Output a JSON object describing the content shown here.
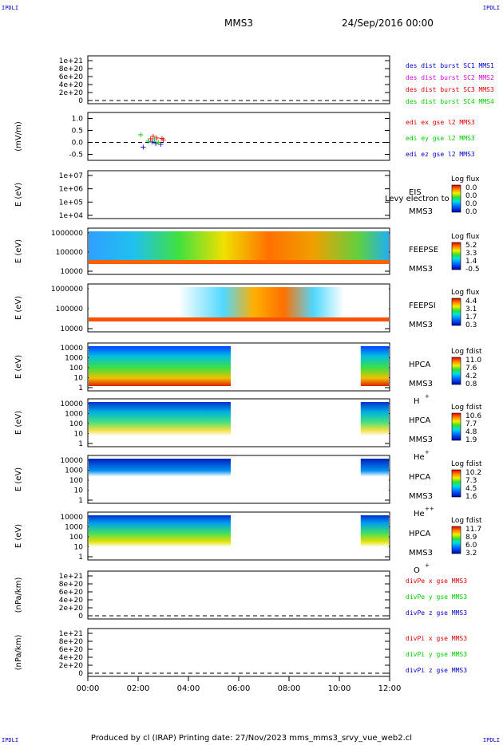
{
  "corners": {
    "tl": "IPDLI",
    "tr": "IPDLI",
    "bl": "IPDLI",
    "br": "IPDLI"
  },
  "header": {
    "title": "MMS3",
    "datetime": "24/Sep/2016 00:00"
  },
  "footer": "Produced by cl (IRAP)   Printing date: 27/Nov/2023   mms_mms3_srvy_vue_web2.cl",
  "colors": {
    "red": "#dd0000",
    "magenta": "#dd00dd",
    "green": "#00cc00",
    "blue": "#0000cc",
    "black": "#000000"
  },
  "chart_data": {
    "type": "stacked-panels",
    "x_axis": {
      "ticks": [
        "00:00",
        "02:00",
        "04:00",
        "06:00",
        "08:00",
        "10:00",
        "12:00"
      ],
      "range": [
        "00:00",
        "12:00"
      ]
    },
    "panels": [
      {
        "kind": "line",
        "ylabel": "",
        "yticks": [
          "1e+21",
          "8e+20",
          "6e+20",
          "4e+20",
          "2e+20",
          "0"
        ],
        "legend": [
          {
            "text": "des dist burst SC1 MMS1",
            "color": "#0000cc"
          },
          {
            "text": "des dist burst SC2 MMS2",
            "color": "#dd00dd"
          },
          {
            "text": "des dist burst SC3 MMS3",
            "color": "#dd0000"
          },
          {
            "text": "des dist burst SC4 MMS4",
            "color": "#00cc00"
          }
        ]
      },
      {
        "kind": "scatter",
        "ylabel": "(mV/m)",
        "yticks": [
          "1.0",
          "0.5",
          "0.0",
          "-0.5"
        ],
        "legend": [
          {
            "text": "edi ex gse l2 MMS3",
            "color": "#dd0000"
          },
          {
            "text": "edi ey gse l2 MMS3",
            "color": "#00cc00"
          },
          {
            "text": "edi ez gse l2 MMS3",
            "color": "#0000cc"
          }
        ],
        "points": [
          {
            "t": 2.1,
            "v": 0.32,
            "c": "green"
          },
          {
            "t": 2.2,
            "v": -0.2,
            "c": "blue"
          },
          {
            "t": 2.4,
            "v": 0.05,
            "c": "green"
          },
          {
            "t": 2.5,
            "v": 0.15,
            "c": "red"
          },
          {
            "t": 2.55,
            "v": 0.02,
            "c": "blue"
          },
          {
            "t": 2.6,
            "v": 0.25,
            "c": "red"
          },
          {
            "t": 2.65,
            "v": 0.1,
            "c": "green"
          },
          {
            "t": 2.7,
            "v": -0.05,
            "c": "blue"
          },
          {
            "t": 2.75,
            "v": 0.18,
            "c": "red"
          },
          {
            "t": 2.8,
            "v": 0.0,
            "c": "green"
          },
          {
            "t": 2.95,
            "v": 0.17,
            "c": "red"
          },
          {
            "t": 3.0,
            "v": 0.1,
            "c": "red"
          },
          {
            "t": 2.9,
            "v": -0.08,
            "c": "blue"
          }
        ]
      },
      {
        "kind": "spectrogram",
        "ylabel": "E (eV)",
        "yticks": [
          "1e+07",
          "1e+06",
          "1e+05",
          "1e+04"
        ],
        "inst": [
          "EIS",
          "MMS3"
        ],
        "overlay": "Levy electron to",
        "cbar_title": "Log flux",
        "cbar": [
          "0.0",
          "0.0",
          "0.0",
          "0.0"
        ]
      },
      {
        "kind": "spectrogram",
        "ylabel": "E (eV)",
        "yticks": [
          "1000000",
          "100000",
          "10000"
        ],
        "inst": [
          "FEEPSE",
          "MMS3"
        ],
        "cbar_title": "Log flux",
        "cbar": [
          "5.2",
          "3.3",
          "1.4",
          "-0.5"
        ]
      },
      {
        "kind": "spectrogram",
        "ylabel": "E (eV)",
        "yticks": [
          "1000000",
          "100000",
          "10000"
        ],
        "inst": [
          "FEEPSI",
          "MMS3"
        ],
        "cbar_title": "Log flux",
        "cbar": [
          "4.4",
          "3.1",
          "1.7",
          "0.3"
        ]
      },
      {
        "kind": "spectrogram",
        "ylabel": "E (eV)",
        "yticks": [
          "10000",
          "1000",
          "100",
          "10",
          "1"
        ],
        "inst": [
          "HPCA",
          "MMS3",
          "H",
          "+"
        ],
        "cbar_title": "Log fdist",
        "cbar": [
          "11.0",
          "7.6",
          "4.2",
          "0.8"
        ]
      },
      {
        "kind": "spectrogram",
        "ylabel": "E (eV)",
        "yticks": [
          "10000",
          "1000",
          "100",
          "10",
          "1"
        ],
        "inst": [
          "HPCA",
          "MMS3",
          "He",
          "+"
        ],
        "cbar_title": "Log fdist",
        "cbar": [
          "10.6",
          "7.7",
          "4.8",
          "1.9"
        ]
      },
      {
        "kind": "spectrogram",
        "ylabel": "E (eV)",
        "yticks": [
          "10000",
          "1000",
          "100",
          "10",
          "1"
        ],
        "inst": [
          "HPCA",
          "MMS3",
          "He",
          "++"
        ],
        "cbar_title": "Log fdist",
        "cbar": [
          "10.2",
          "7.3",
          "4.5",
          "1.6"
        ]
      },
      {
        "kind": "spectrogram",
        "ylabel": "E (eV)",
        "yticks": [
          "10000",
          "1000",
          "100",
          "10",
          "1"
        ],
        "inst": [
          "HPCA",
          "MMS3",
          "O",
          "+"
        ],
        "cbar_title": "Log fdist",
        "cbar": [
          "11.7",
          "8.9",
          "6.0",
          "3.2"
        ]
      },
      {
        "kind": "line",
        "ylabel": "(nPa/km)",
        "yticks": [
          "1e+21",
          "8e+20",
          "6e+20",
          "4e+20",
          "2e+20",
          "0"
        ],
        "legend": [
          {
            "text": "divPe x gse MMS3",
            "color": "#dd0000"
          },
          {
            "text": "divPe y gse MMS3",
            "color": "#00cc00"
          },
          {
            "text": "divPe z gse MMS3",
            "color": "#0000cc"
          }
        ]
      },
      {
        "kind": "line",
        "ylabel": "(nPa/km)",
        "yticks": [
          "1e+21",
          "8e+20",
          "6e+20",
          "4e+20",
          "2e+20",
          "0"
        ],
        "legend": [
          {
            "text": "divPi x gse MMS3",
            "color": "#dd0000"
          },
          {
            "text": "divPi y gse MMS3",
            "color": "#00cc00"
          },
          {
            "text": "divPi z gse MMS3",
            "color": "#0000cc"
          }
        ]
      }
    ]
  }
}
